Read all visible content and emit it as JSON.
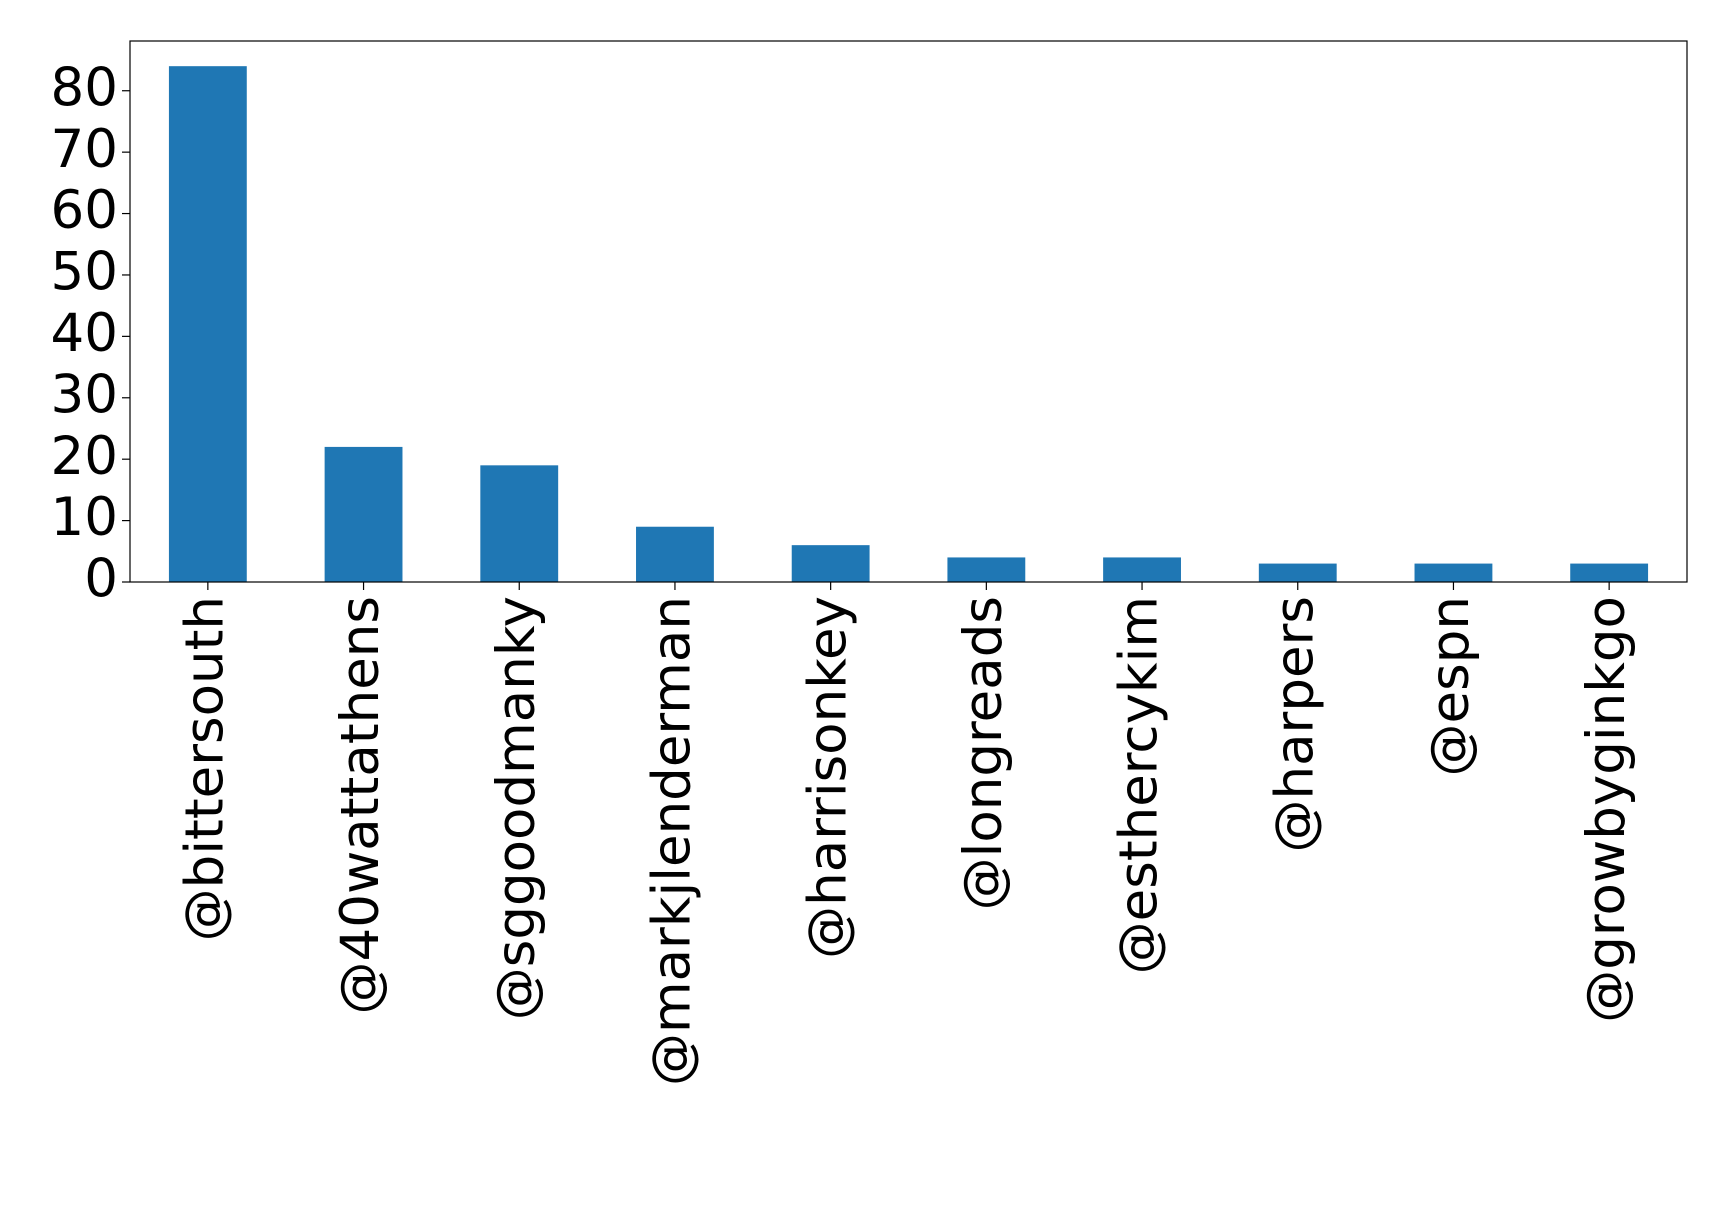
{
  "chart_data": {
    "type": "bar",
    "categories": [
      "@bittersouth",
      "@40wattathens",
      "@sggoodmanky",
      "@markjlenderman",
      "@harrisonkey",
      "@longreads",
      "@esthercykim",
      "@harpers",
      "@espn",
      "@growbyginkgo"
    ],
    "values": [
      84,
      22,
      19,
      9,
      6,
      4,
      4,
      3,
      3,
      3
    ],
    "color": "#1f77b4",
    "ylim": [
      0,
      88.1
    ],
    "yticks": [
      0,
      10,
      20,
      30,
      40,
      50,
      60,
      70,
      80
    ]
  }
}
